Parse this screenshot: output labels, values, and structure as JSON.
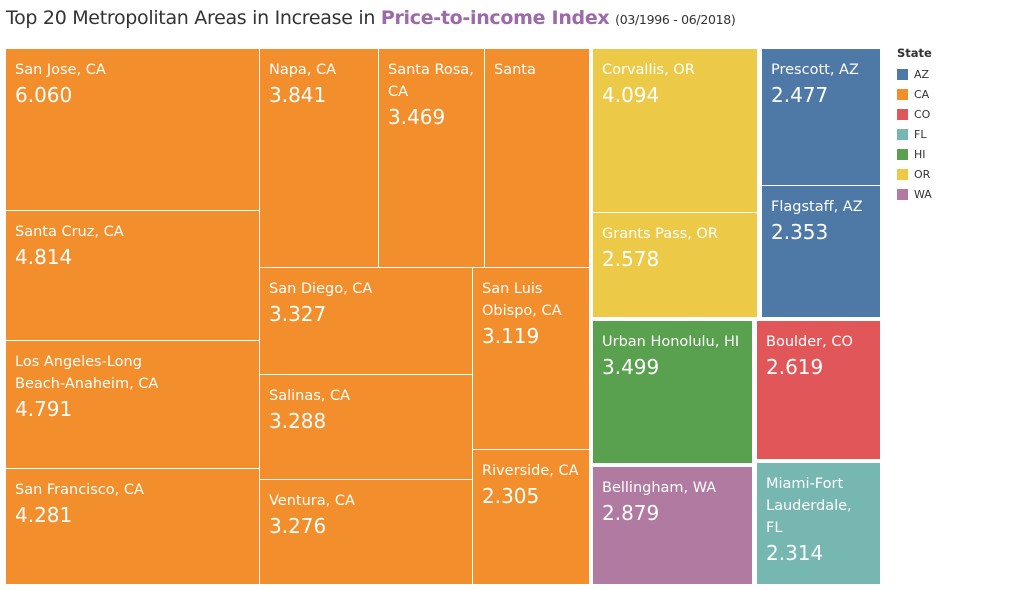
{
  "title": {
    "prefix": "Top 20 Metropolitan Areas in Increase in ",
    "highlight": "Price-to-income Index",
    "range": "(03/1996 - 06/2018)"
  },
  "legend": {
    "title": "State",
    "items": [
      {
        "label": "AZ",
        "color": "#4e79a7"
      },
      {
        "label": "CA",
        "color": "#f28e2b"
      },
      {
        "label": "CO",
        "color": "#e15759"
      },
      {
        "label": "FL",
        "color": "#76b7b2"
      },
      {
        "label": "HI",
        "color": "#59a14f"
      },
      {
        "label": "OR",
        "color": "#edc948"
      },
      {
        "label": "WA",
        "color": "#b07aa1"
      }
    ]
  },
  "chart_data": {
    "type": "treemap",
    "title": "Top 20 Metropolitan Areas in Increase in Price-to-income Index (03/1996 - 06/2018)",
    "legend_title": "State",
    "legend_position": "right",
    "items": [
      {
        "name": "San Jose, CA",
        "state": "CA",
        "value": 6.06
      },
      {
        "name": "Santa Cruz, CA",
        "state": "CA",
        "value": 4.814
      },
      {
        "name": "Los Angeles-Long Beach-Anaheim, CA",
        "state": "CA",
        "value": 4.791
      },
      {
        "name": "San Francisco, CA",
        "state": "CA",
        "value": 4.281
      },
      {
        "name": "Napa, CA",
        "state": "CA",
        "value": 3.841
      },
      {
        "name": "Santa Rosa, CA",
        "state": "CA",
        "value": 3.469
      },
      {
        "name": "Santa",
        "state": "CA",
        "value": null
      },
      {
        "name": "San Diego, CA",
        "state": "CA",
        "value": 3.327
      },
      {
        "name": "San Luis Obispo, CA",
        "state": "CA",
        "value": 3.119
      },
      {
        "name": "Salinas, CA",
        "state": "CA",
        "value": 3.288
      },
      {
        "name": "Ventura, CA",
        "state": "CA",
        "value": 3.276
      },
      {
        "name": "Riverside, CA",
        "state": "CA",
        "value": 2.305
      },
      {
        "name": "Corvallis, OR",
        "state": "OR",
        "value": 4.094
      },
      {
        "name": "Grants Pass, OR",
        "state": "OR",
        "value": 2.578
      },
      {
        "name": "Prescott, AZ",
        "state": "AZ",
        "value": 2.477
      },
      {
        "name": "Flagstaff, AZ",
        "state": "AZ",
        "value": 2.353
      },
      {
        "name": "Urban Honolulu, HI",
        "state": "HI",
        "value": 3.499
      },
      {
        "name": "Boulder, CO",
        "state": "CO",
        "value": 2.619
      },
      {
        "name": "Bellingham, WA",
        "state": "WA",
        "value": 2.879
      },
      {
        "name": "Miami-Fort Lauderdale, FL",
        "state": "FL",
        "value": 2.314
      }
    ]
  }
}
